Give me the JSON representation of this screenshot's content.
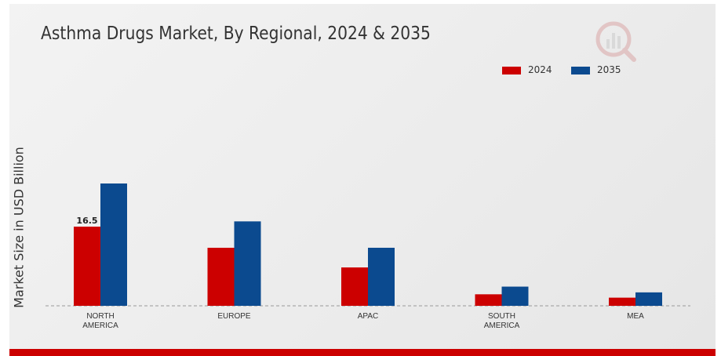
{
  "title": "Asthma Drugs Market, By Regional, 2024 & 2035",
  "colors": {
    "2024": "#cc0000",
    "2035": "#0b4a8f",
    "bottom_bar": "#cc0000"
  },
  "icons": {
    "logo": "brand-logo-icon"
  },
  "chart_data": {
    "type": "bar",
    "title": "Asthma Drugs Market, By Regional, 2024 & 2035",
    "xlabel": "",
    "ylabel": "Market Size in USD Billion",
    "categories": [
      "NORTH AMERICA",
      "EUROPE",
      "APAC",
      "SOUTH AMERICA",
      "MEA"
    ],
    "series": [
      {
        "name": "2024",
        "color": "#cc0000",
        "values": [
          16.5,
          12.1,
          8.0,
          2.4,
          1.7
        ]
      },
      {
        "name": "2035",
        "color": "#0b4a8f",
        "values": [
          25.5,
          17.6,
          12.1,
          4.0,
          2.8
        ]
      }
    ],
    "data_labels": [
      {
        "series": "2024",
        "category": "NORTH AMERICA",
        "text": "16.5"
      }
    ],
    "ylim": [
      0,
      31
    ],
    "grid": false,
    "legend_position": "top-right",
    "baseline": "dashed"
  }
}
